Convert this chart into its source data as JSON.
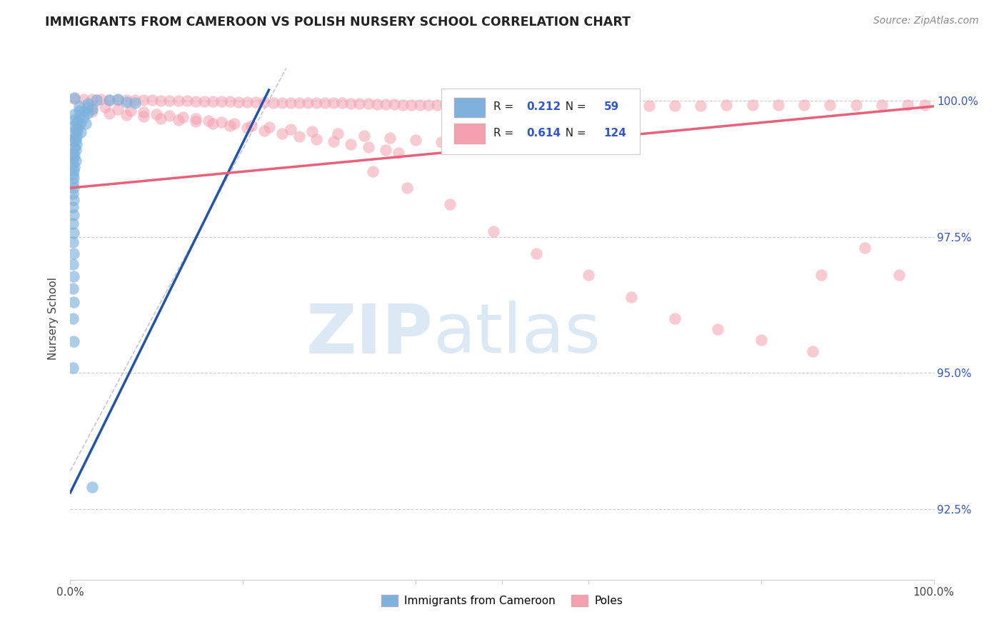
{
  "title": "IMMIGRANTS FROM CAMEROON VS POLISH NURSERY SCHOOL CORRELATION CHART",
  "source": "Source: ZipAtlas.com",
  "ylabel": "Nursery School",
  "ytick_labels": [
    "100.0%",
    "97.5%",
    "95.0%",
    "92.5%"
  ],
  "ytick_values": [
    1.0,
    0.975,
    0.95,
    0.925
  ],
  "xlim": [
    0.0,
    1.0
  ],
  "ylim": [
    0.912,
    1.008
  ],
  "legend_blue_r": "0.212",
  "legend_blue_n": "59",
  "legend_pink_r": "0.614",
  "legend_pink_n": "124",
  "legend_label_blue": "Immigrants from Cameroon",
  "legend_label_pink": "Poles",
  "blue_color": "#7EB2DD",
  "pink_color": "#F4A0B0",
  "blue_line_color": "#2255AA",
  "pink_line_color": "#E8607A",
  "blue_scatter": [
    [
      0.005,
      1.0005
    ],
    [
      0.02,
      0.9995
    ],
    [
      0.03,
      1.0002
    ],
    [
      0.045,
      1.0001
    ],
    [
      0.055,
      1.0003
    ],
    [
      0.065,
      0.9998
    ],
    [
      0.075,
      0.9997
    ],
    [
      0.01,
      0.999
    ],
    [
      0.02,
      0.9988
    ],
    [
      0.025,
      0.9985
    ],
    [
      0.01,
      0.9982
    ],
    [
      0.015,
      0.998
    ],
    [
      0.02,
      0.9978
    ],
    [
      0.005,
      0.9975
    ],
    [
      0.01,
      0.9972
    ],
    [
      0.015,
      0.997
    ],
    [
      0.005,
      0.9965
    ],
    [
      0.008,
      0.9962
    ],
    [
      0.012,
      0.996
    ],
    [
      0.018,
      0.9958
    ],
    [
      0.005,
      0.9955
    ],
    [
      0.009,
      0.9952
    ],
    [
      0.006,
      0.9948
    ],
    [
      0.008,
      0.9945
    ],
    [
      0.012,
      0.9942
    ],
    [
      0.004,
      0.9938
    ],
    [
      0.007,
      0.9935
    ],
    [
      0.005,
      0.9932
    ],
    [
      0.006,
      0.9928
    ],
    [
      0.004,
      0.9925
    ],
    [
      0.007,
      0.992
    ],
    [
      0.005,
      0.9915
    ],
    [
      0.006,
      0.991
    ],
    [
      0.003,
      0.9905
    ],
    [
      0.005,
      0.99
    ],
    [
      0.004,
      0.9895
    ],
    [
      0.006,
      0.989
    ],
    [
      0.003,
      0.9885
    ],
    [
      0.005,
      0.9878
    ],
    [
      0.004,
      0.9872
    ],
    [
      0.003,
      0.9865
    ],
    [
      0.004,
      0.9858
    ],
    [
      0.003,
      0.985
    ],
    [
      0.004,
      0.984
    ],
    [
      0.003,
      0.983
    ],
    [
      0.004,
      0.9818
    ],
    [
      0.003,
      0.9805
    ],
    [
      0.004,
      0.979
    ],
    [
      0.003,
      0.9775
    ],
    [
      0.004,
      0.9758
    ],
    [
      0.003,
      0.974
    ],
    [
      0.004,
      0.972
    ],
    [
      0.003,
      0.97
    ],
    [
      0.004,
      0.9678
    ],
    [
      0.003,
      0.9655
    ],
    [
      0.004,
      0.963
    ],
    [
      0.003,
      0.96
    ],
    [
      0.004,
      0.9558
    ],
    [
      0.003,
      0.951
    ],
    [
      0.025,
      0.929
    ]
  ],
  "pink_scatter": [
    [
      0.005,
      1.0004
    ],
    [
      0.015,
      1.0003
    ],
    [
      0.025,
      1.0003
    ],
    [
      0.035,
      1.0003
    ],
    [
      0.045,
      1.0002
    ],
    [
      0.055,
      1.0002
    ],
    [
      0.065,
      1.0002
    ],
    [
      0.075,
      1.0001
    ],
    [
      0.085,
      1.0001
    ],
    [
      0.095,
      1.0001
    ],
    [
      0.105,
      1.0
    ],
    [
      0.115,
      1.0
    ],
    [
      0.125,
      1.0
    ],
    [
      0.135,
      1.0
    ],
    [
      0.145,
      0.9999
    ],
    [
      0.155,
      0.9999
    ],
    [
      0.165,
      0.9999
    ],
    [
      0.175,
      0.9999
    ],
    [
      0.185,
      0.9999
    ],
    [
      0.195,
      0.9998
    ],
    [
      0.205,
      0.9998
    ],
    [
      0.215,
      0.9998
    ],
    [
      0.225,
      0.9998
    ],
    [
      0.235,
      0.9997
    ],
    [
      0.245,
      0.9997
    ],
    [
      0.255,
      0.9997
    ],
    [
      0.265,
      0.9997
    ],
    [
      0.275,
      0.9997
    ],
    [
      0.285,
      0.9996
    ],
    [
      0.295,
      0.9996
    ],
    [
      0.305,
      0.9996
    ],
    [
      0.315,
      0.9996
    ],
    [
      0.325,
      0.9995
    ],
    [
      0.335,
      0.9995
    ],
    [
      0.345,
      0.9995
    ],
    [
      0.355,
      0.9994
    ],
    [
      0.365,
      0.9994
    ],
    [
      0.375,
      0.9994
    ],
    [
      0.385,
      0.9993
    ],
    [
      0.395,
      0.9993
    ],
    [
      0.405,
      0.9993
    ],
    [
      0.415,
      0.9992
    ],
    [
      0.425,
      0.9992
    ],
    [
      0.435,
      0.9992
    ],
    [
      0.445,
      0.9991
    ],
    [
      0.455,
      0.9991
    ],
    [
      0.465,
      0.999
    ],
    [
      0.475,
      0.999
    ],
    [
      0.485,
      0.999
    ],
    [
      0.495,
      0.9989
    ],
    [
      0.51,
      0.9989
    ],
    [
      0.525,
      0.9989
    ],
    [
      0.54,
      0.999
    ],
    [
      0.56,
      0.999
    ],
    [
      0.58,
      0.9991
    ],
    [
      0.61,
      0.9991
    ],
    [
      0.64,
      0.9991
    ],
    [
      0.67,
      0.9991
    ],
    [
      0.7,
      0.9991
    ],
    [
      0.73,
      0.9991
    ],
    [
      0.76,
      0.9992
    ],
    [
      0.79,
      0.9992
    ],
    [
      0.82,
      0.9993
    ],
    [
      0.85,
      0.9993
    ],
    [
      0.88,
      0.9993
    ],
    [
      0.91,
      0.9993
    ],
    [
      0.94,
      0.9993
    ],
    [
      0.97,
      0.9993
    ],
    [
      0.99,
      0.9993
    ],
    [
      0.025,
      0.999
    ],
    [
      0.04,
      0.9988
    ],
    [
      0.055,
      0.9985
    ],
    [
      0.07,
      0.9982
    ],
    [
      0.085,
      0.9979
    ],
    [
      0.1,
      0.9976
    ],
    [
      0.115,
      0.9973
    ],
    [
      0.13,
      0.997
    ],
    [
      0.145,
      0.9967
    ],
    [
      0.16,
      0.9964
    ],
    [
      0.175,
      0.9961
    ],
    [
      0.19,
      0.9958
    ],
    [
      0.21,
      0.9955
    ],
    [
      0.23,
      0.9952
    ],
    [
      0.255,
      0.9948
    ],
    [
      0.28,
      0.9944
    ],
    [
      0.31,
      0.994
    ],
    [
      0.34,
      0.9936
    ],
    [
      0.37,
      0.9932
    ],
    [
      0.4,
      0.9928
    ],
    [
      0.43,
      0.9924
    ],
    [
      0.46,
      0.992
    ],
    [
      0.49,
      0.9915
    ],
    [
      0.025,
      0.998
    ],
    [
      0.045,
      0.9977
    ],
    [
      0.065,
      0.9974
    ],
    [
      0.085,
      0.9971
    ],
    [
      0.105,
      0.9968
    ],
    [
      0.125,
      0.9965
    ],
    [
      0.145,
      0.9962
    ],
    [
      0.165,
      0.9958
    ],
    [
      0.185,
      0.9954
    ],
    [
      0.205,
      0.995
    ],
    [
      0.225,
      0.9945
    ],
    [
      0.245,
      0.994
    ],
    [
      0.265,
      0.9935
    ],
    [
      0.285,
      0.993
    ],
    [
      0.305,
      0.9925
    ],
    [
      0.325,
      0.992
    ],
    [
      0.345,
      0.9915
    ],
    [
      0.365,
      0.991
    ],
    [
      0.38,
      0.9905
    ],
    [
      0.35,
      0.987
    ],
    [
      0.39,
      0.984
    ],
    [
      0.44,
      0.981
    ],
    [
      0.49,
      0.976
    ],
    [
      0.54,
      0.972
    ],
    [
      0.6,
      0.968
    ],
    [
      0.65,
      0.964
    ],
    [
      0.7,
      0.96
    ],
    [
      0.75,
      0.958
    ],
    [
      0.8,
      0.956
    ],
    [
      0.86,
      0.954
    ],
    [
      0.87,
      0.968
    ],
    [
      0.92,
      0.973
    ],
    [
      0.96,
      0.968
    ]
  ]
}
